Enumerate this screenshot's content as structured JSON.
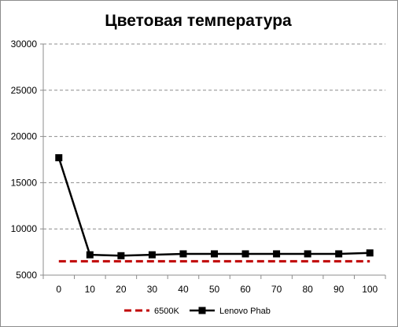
{
  "chart_data": {
    "type": "line",
    "title": "Цветовая температура",
    "xlabel": "",
    "ylabel": "",
    "x": [
      "0",
      "10",
      "20",
      "30",
      "40",
      "50",
      "60",
      "70",
      "80",
      "90",
      "100"
    ],
    "ylim": [
      5000,
      30000
    ],
    "yticks": [
      "5000",
      "10000",
      "15000",
      "20000",
      "25000",
      "30000"
    ],
    "grid": "horizontal dashed",
    "legend_position": "bottom",
    "series": [
      {
        "name": "6500K",
        "style": "dashed",
        "color": "#c00000",
        "values": [
          6500,
          6500,
          6500,
          6500,
          6500,
          6500,
          6500,
          6500,
          6500,
          6500,
          6500
        ]
      },
      {
        "name": "Lenovo Phab",
        "style": "solid-square-markers",
        "color": "#000000",
        "values": [
          17700,
          7200,
          7100,
          7200,
          7300,
          7300,
          7300,
          7300,
          7300,
          7300,
          7400
        ]
      }
    ]
  }
}
